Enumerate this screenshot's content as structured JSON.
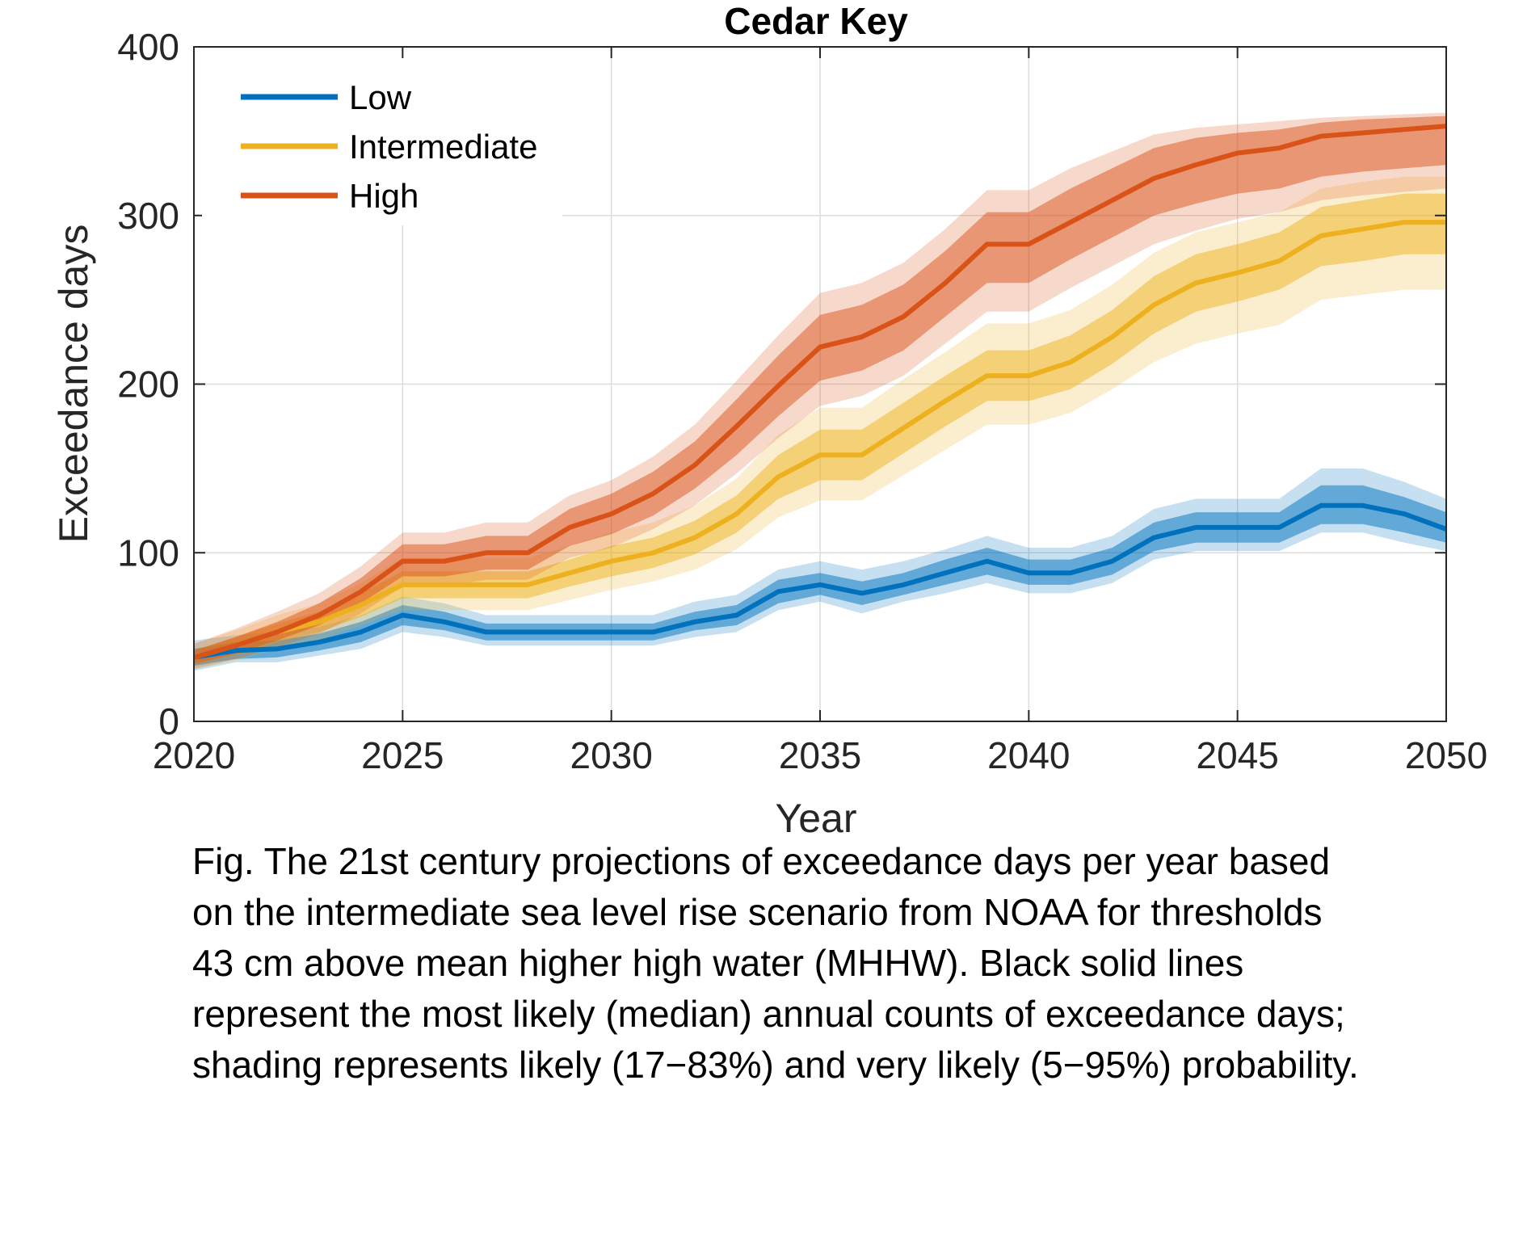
{
  "chart_data": {
    "type": "line",
    "title": "Cedar Key",
    "xlabel": "Year",
    "ylabel": "Exceedance days",
    "xlim": [
      2020,
      2050
    ],
    "ylim": [
      0,
      400
    ],
    "xticks": [
      2020,
      2025,
      2030,
      2035,
      2040,
      2045,
      2050
    ],
    "yticks": [
      0,
      100,
      200,
      300,
      400
    ],
    "grid": true,
    "legend_position": "top-left",
    "x": [
      2020,
      2021,
      2022,
      2023,
      2024,
      2025,
      2026,
      2027,
      2028,
      2029,
      2030,
      2031,
      2032,
      2033,
      2034,
      2035,
      2036,
      2037,
      2038,
      2039,
      2040,
      2041,
      2042,
      2043,
      2044,
      2045,
      2046,
      2047,
      2048,
      2049,
      2050
    ],
    "series": [
      {
        "name": "Low",
        "color": "#0072BD",
        "median": [
          38,
          42,
          43,
          47,
          53,
          63,
          59,
          53,
          53,
          53,
          53,
          53,
          59,
          63,
          77,
          81,
          76,
          81,
          88,
          95,
          88,
          88,
          95,
          109,
          115,
          115,
          115,
          128,
          128,
          123,
          114
        ],
        "likely_low": [
          33,
          37,
          38,
          42,
          47,
          57,
          54,
          48,
          48,
          48,
          48,
          48,
          54,
          57,
          70,
          75,
          69,
          75,
          81,
          87,
          81,
          81,
          87,
          101,
          106,
          106,
          106,
          117,
          117,
          112,
          106
        ],
        "likely_high": [
          43,
          47,
          48,
          52,
          59,
          69,
          65,
          58,
          58,
          58,
          58,
          58,
          65,
          69,
          84,
          88,
          83,
          88,
          96,
          103,
          96,
          96,
          103,
          118,
          124,
          124,
          124,
          140,
          140,
          133,
          124
        ],
        "very_likely_low": [
          30,
          35,
          35,
          39,
          43,
          53,
          50,
          45,
          45,
          45,
          45,
          45,
          50,
          53,
          66,
          71,
          64,
          71,
          76,
          82,
          76,
          76,
          82,
          96,
          101,
          101,
          101,
          112,
          112,
          106,
          101
        ],
        "very_likely_high": [
          48,
          51,
          53,
          56,
          63,
          74,
          70,
          63,
          63,
          63,
          63,
          63,
          71,
          75,
          90,
          95,
          90,
          95,
          102,
          110,
          103,
          103,
          110,
          126,
          132,
          132,
          132,
          150,
          150,
          142,
          132
        ]
      },
      {
        "name": "Intermediate",
        "color": "#EDB120",
        "median": [
          38,
          45,
          53,
          59,
          69,
          81,
          81,
          81,
          81,
          88,
          95,
          100,
          109,
          123,
          145,
          158,
          158,
          174,
          190,
          205,
          205,
          213,
          228,
          247,
          260,
          266,
          273,
          288,
          292,
          296,
          296
        ],
        "likely_low": [
          34,
          40,
          47,
          53,
          62,
          73,
          73,
          73,
          73,
          80,
          86,
          91,
          99,
          112,
          132,
          143,
          143,
          159,
          175,
          190,
          190,
          197,
          212,
          230,
          243,
          249,
          256,
          270,
          273,
          277,
          277
        ],
        "likely_high": [
          42,
          50,
          58,
          65,
          76,
          89,
          89,
          89,
          89,
          96,
          104,
          109,
          119,
          134,
          158,
          173,
          173,
          189,
          205,
          220,
          220,
          229,
          244,
          264,
          277,
          283,
          290,
          305,
          309,
          313,
          313
        ],
        "very_likely_low": [
          31,
          36,
          43,
          48,
          57,
          66,
          66,
          66,
          66,
          72,
          78,
          83,
          90,
          102,
          121,
          131,
          131,
          146,
          161,
          176,
          176,
          183,
          197,
          213,
          224,
          230,
          235,
          250,
          253,
          256,
          256
        ],
        "very_likely_high": [
          46,
          54,
          63,
          70,
          82,
          97,
          97,
          97,
          97,
          104,
          112,
          118,
          128,
          144,
          170,
          186,
          186,
          203,
          219,
          236,
          236,
          244,
          259,
          278,
          290,
          296,
          302,
          316,
          320,
          323,
          323
        ]
      },
      {
        "name": "High",
        "color": "#D95319",
        "median": [
          38,
          45,
          53,
          63,
          77,
          95,
          95,
          100,
          100,
          115,
          123,
          135,
          152,
          175,
          199,
          222,
          228,
          240,
          260,
          283,
          283,
          296,
          309,
          322,
          330,
          337,
          340,
          347,
          349,
          351,
          353
        ],
        "likely_low": [
          34,
          40,
          48,
          57,
          70,
          86,
          86,
          90,
          90,
          104,
          111,
          122,
          138,
          158,
          181,
          202,
          208,
          220,
          240,
          260,
          260,
          274,
          287,
          300,
          307,
          313,
          316,
          323,
          326,
          328,
          330
        ],
        "likely_high": [
          42,
          50,
          59,
          70,
          85,
          105,
          105,
          110,
          110,
          126,
          135,
          148,
          166,
          191,
          217,
          241,
          247,
          259,
          279,
          302,
          302,
          316,
          328,
          340,
          346,
          349,
          351,
          355,
          357,
          358,
          359
        ],
        "very_likely_low": [
          31,
          37,
          44,
          52,
          64,
          80,
          80,
          84,
          84,
          97,
          103,
          114,
          128,
          147,
          168,
          187,
          193,
          205,
          224,
          243,
          243,
          257,
          270,
          283,
          291,
          298,
          302,
          309,
          312,
          314,
          316
        ],
        "very_likely_high": [
          46,
          55,
          65,
          76,
          92,
          112,
          112,
          118,
          118,
          134,
          143,
          157,
          176,
          202,
          229,
          254,
          260,
          272,
          292,
          315,
          315,
          328,
          338,
          348,
          352,
          354,
          356,
          358,
          359,
          360,
          361
        ]
      }
    ]
  },
  "caption": {
    "lines": [
      "Fig. The 21st century projections of exceedance days per year based",
      "on the intermediate sea level rise scenario from NOAA for thresholds",
      "43 cm above mean higher high water (MHHW). Black solid lines",
      "represent the most likely (median) annual counts of exceedance days;",
      "shading represents likely (17−83%) and very likely (5−95%) probability."
    ]
  }
}
